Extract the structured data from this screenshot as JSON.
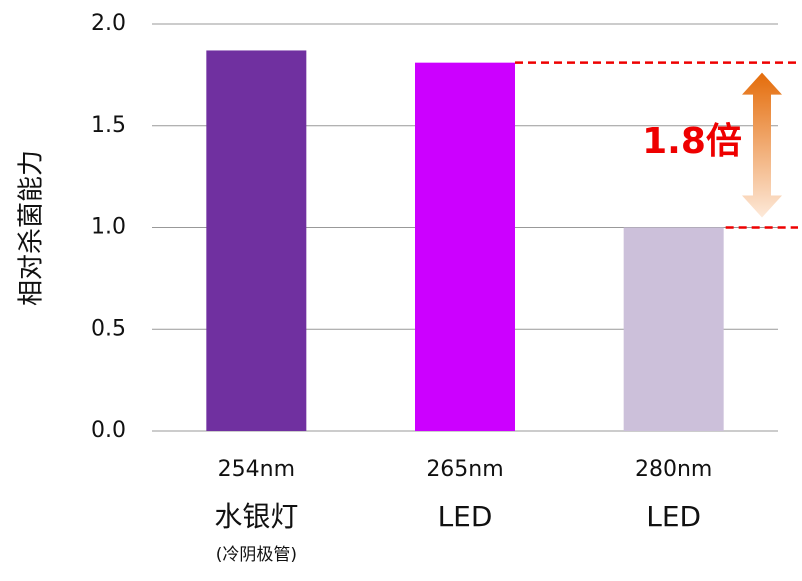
{
  "chart_data": {
    "type": "bar",
    "y_label": "相对杀菌能力",
    "categories": [
      [
        "254nm",
        "水银灯",
        "(冷阴极管)"
      ],
      [
        "265nm",
        "LED"
      ],
      [
        "280nm",
        "LED"
      ]
    ],
    "values": [
      1.87,
      1.81,
      1.0
    ],
    "colors": [
      "#7030a0",
      "#cc00ff",
      "#ccc0da"
    ],
    "ylim": [
      0,
      2.0
    ],
    "yticks": [
      {
        "value": 0,
        "label": "0.0"
      },
      0.5,
      {
        "value": 1,
        "label": "1.0"
      },
      1.5,
      {
        "value": 2,
        "label": "2.0"
      }
    ],
    "grid": true,
    "annotation": "1.8倍",
    "annotation_color": "#ee0000"
  }
}
